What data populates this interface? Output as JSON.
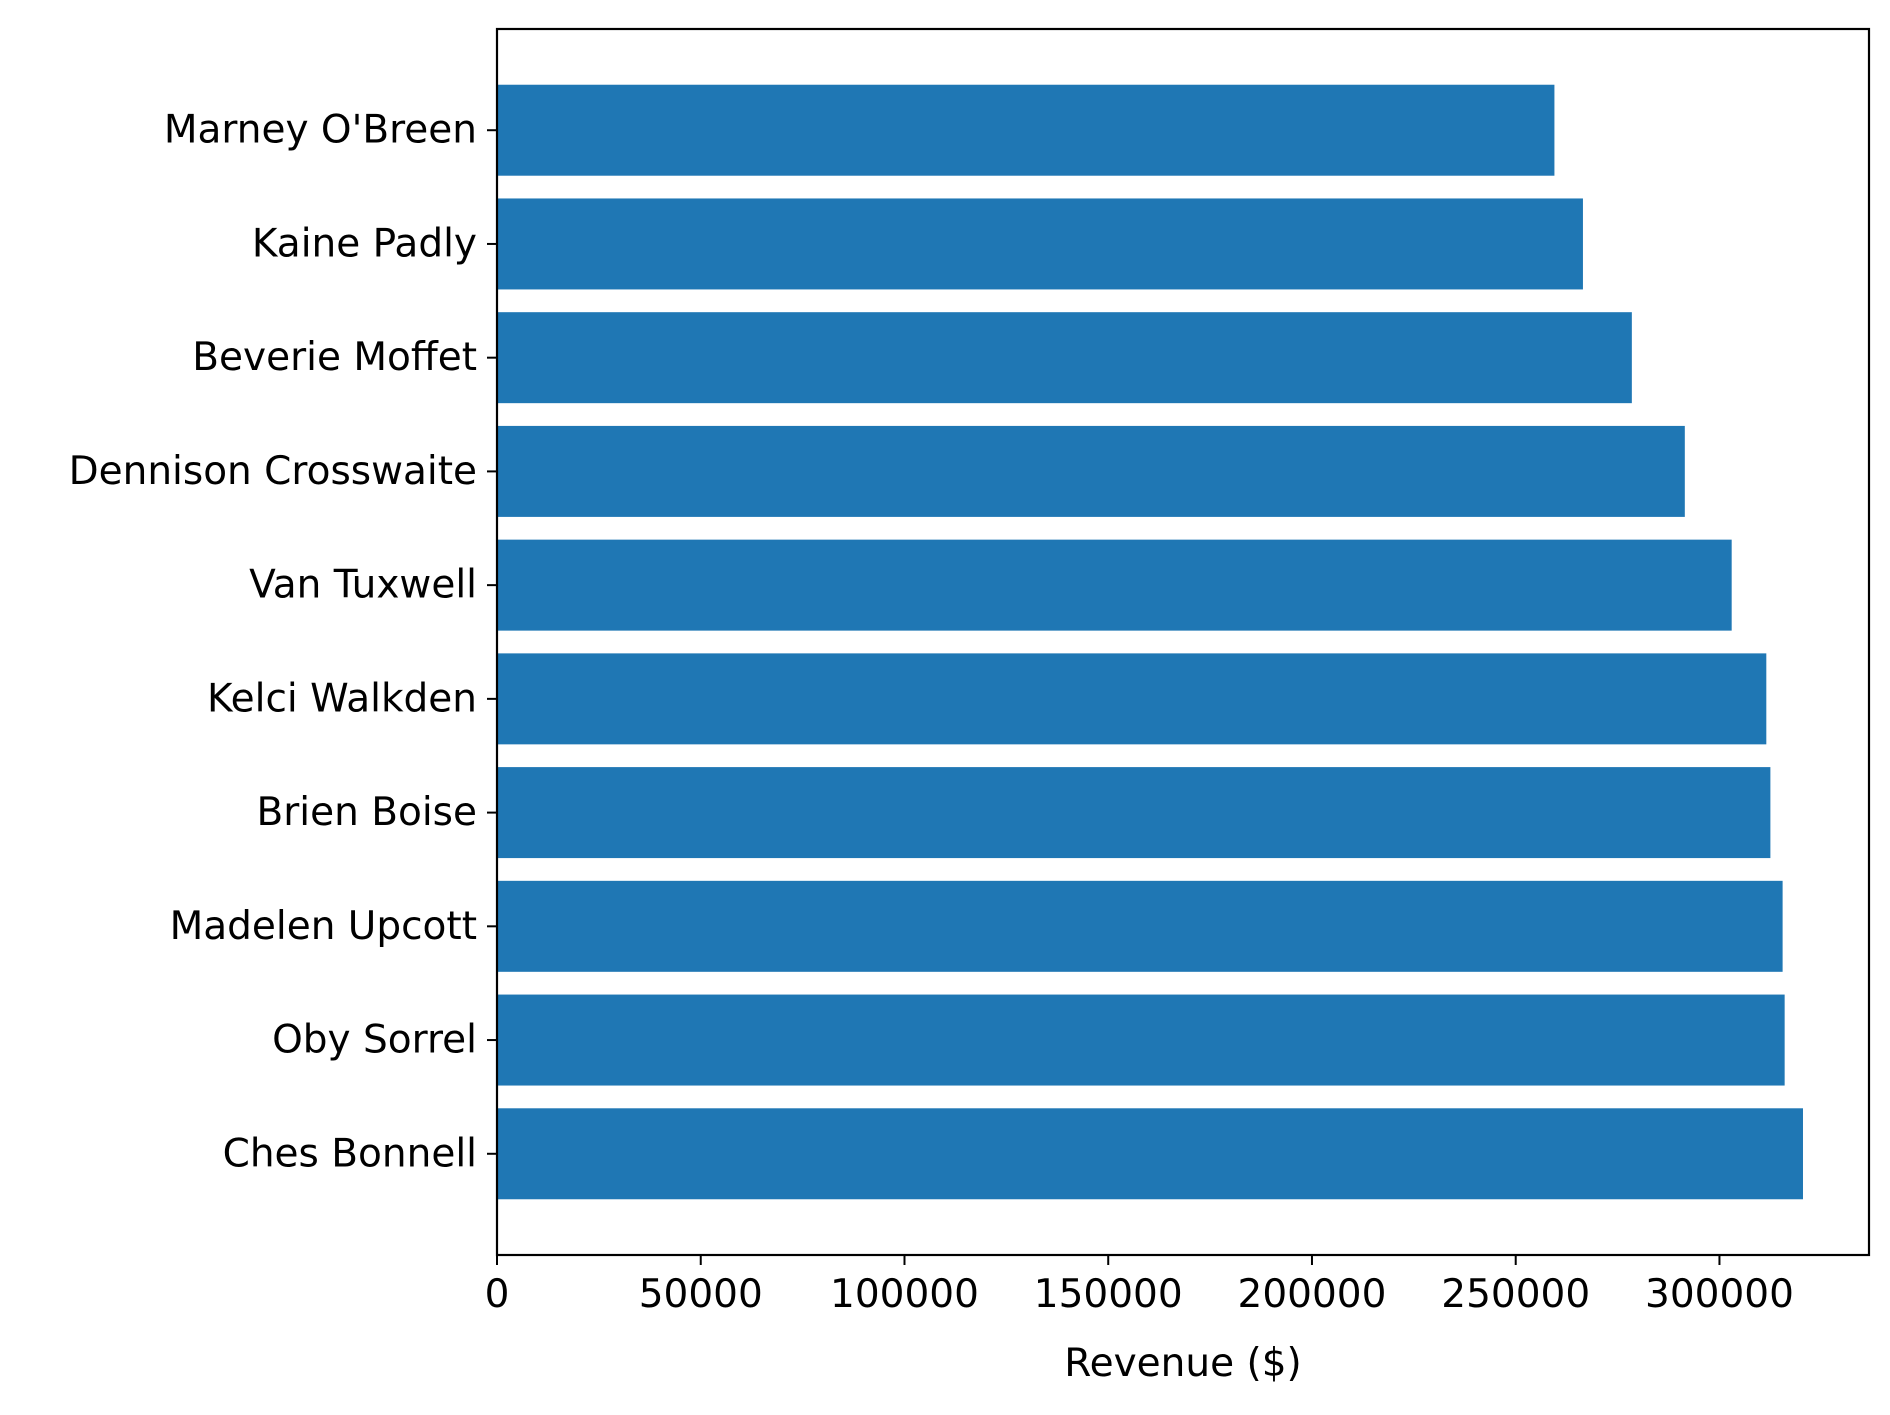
{
  "chart_data": {
    "type": "bar",
    "orientation": "horizontal",
    "categories": [
      "Marney O'Breen",
      "Kaine Padly",
      "Beverie Moffet",
      "Dennison Crosswaite",
      "Van Tuxwell",
      "Kelci Walkden",
      "Brien Boise",
      "Madelen Upcott",
      "Oby Sorrel",
      "Ches Bonnell"
    ],
    "values": [
      259500,
      266500,
      278500,
      291500,
      303000,
      311500,
      312500,
      315500,
      316000,
      320500
    ],
    "xlabel": "Revenue ($)",
    "ylabel": "",
    "title": "",
    "xlim": [
      0,
      336700
    ],
    "xticks": [
      0,
      50000,
      100000,
      150000,
      200000,
      250000,
      300000
    ],
    "xtick_labels": [
      "0",
      "50000",
      "100000",
      "150000",
      "200000",
      "250000",
      "300000"
    ],
    "grid": false,
    "bar_color": "#1f77b4"
  }
}
